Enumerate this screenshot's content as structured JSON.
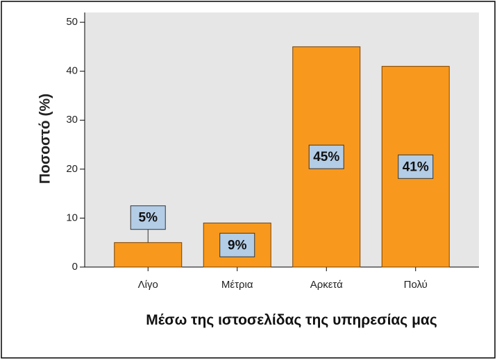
{
  "chart_data": {
    "type": "bar",
    "y_axis_label": "Ποσοστό (%)",
    "x_axis_label": "Μέσω της ιστοσελίδας της υπηρεσίας μας",
    "categories": [
      "Λίγο",
      "Μέτρια",
      "Αρκετά",
      "Πολύ"
    ],
    "values": [
      5,
      9,
      45,
      41
    ],
    "value_labels": [
      "5%",
      "9%",
      "45%",
      "41%"
    ],
    "color": "#f8991d",
    "label_color": "#b4cde6",
    "ylim": [
      0,
      52
    ],
    "yticks": [
      0,
      10,
      20,
      30,
      40,
      50
    ],
    "grid": false
  }
}
